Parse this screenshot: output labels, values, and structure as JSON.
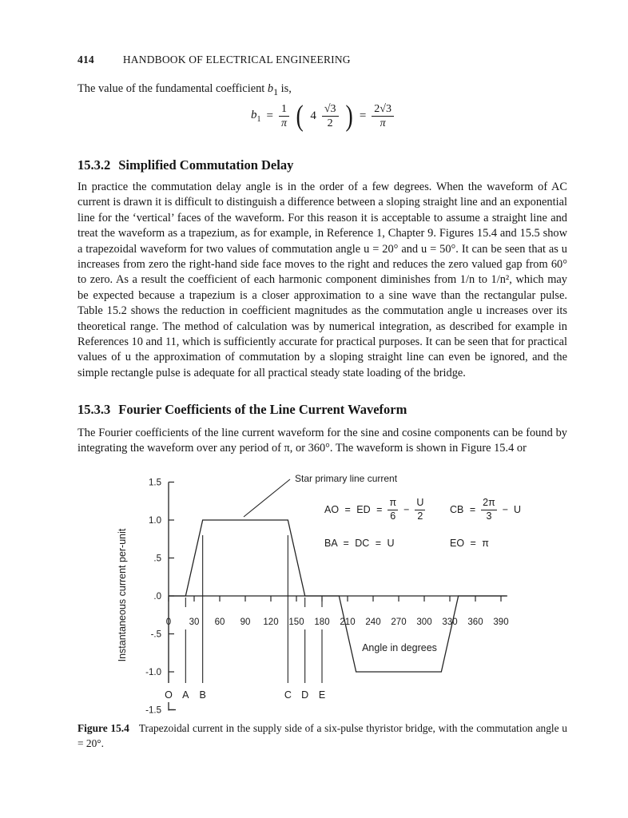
{
  "page": {
    "page_number": "414",
    "running_title": "HANDBOOK OF ELECTRICAL ENGINEERING"
  },
  "intro": {
    "pre": "The value of the fundamental coefficient ",
    "var": "b",
    "var_sub": "1",
    "post": " is,"
  },
  "equation": {
    "lhs_var": "b",
    "lhs_sub": "1",
    "equals1": "=",
    "frac1": {
      "num": "1",
      "den": "π"
    },
    "lparen": "(",
    "coef": "4",
    "frac2": {
      "num": "√3",
      "den": "2"
    },
    "rparen": ")",
    "equals2": "=",
    "frac3": {
      "num": "2√3",
      "den": "π"
    }
  },
  "section_1": {
    "number": "15.3.2",
    "title": "Simplified Commutation Delay",
    "body": "In practice the commutation delay angle is in the order of a few degrees. When the waveform of AC current is drawn it is difficult to distinguish a difference between a sloping straight line and an exponential line for the ‘vertical’ faces of the waveform. For this reason it is acceptable to assume a straight line and treat the waveform as a trapezium, as for example, in Reference 1, Chapter 9. Figures 15.4 and 15.5 show a trapezoidal waveform for two values of commutation angle u = 20° and u = 50°. It can be seen that as u increases from zero the right-hand side face moves to the right and reduces the zero valued gap from 60° to zero. As a result the coefficient of each harmonic component diminishes from 1/n to 1/n², which may be expected because a trapezium is a closer approximation to a sine wave than the rectangular pulse. Table 15.2 shows the reduction in coefficient magnitudes as the commutation angle u increases over its theoretical range. The method of calculation was by numerical integration, as described for example in References 10 and 11, which is sufficiently accurate for practical purposes. It can be seen that for practical values of u the approximation of commutation by a sloping straight line can even be ignored, and the simple rectangle pulse is adequate for all practical steady state loading of the bridge."
  },
  "section_2": {
    "number": "15.3.3",
    "title": "Fourier Coefficients of the Line Current Waveform",
    "body": "The Fourier coefficients of the line current waveform for the sine and cosine components can be found by integrating the waveform over any period of π, or 360°. The waveform is shown in Figure 15.4 or"
  },
  "figure": {
    "equations": {
      "ao_lhs": "AO = ED =",
      "ao_frac1": {
        "num": "π",
        "den": "6"
      },
      "ao_minus": "−",
      "ao_frac2": {
        "num": "U",
        "den": "2"
      },
      "cb_lhs": "CB =",
      "cb_frac": {
        "num": "2π",
        "den": "3"
      },
      "cb_minus": "−",
      "cb_rhs": "U",
      "ba": "BA = DC = U",
      "eo": "EO = π"
    },
    "caption_label": "Figure 15.4",
    "caption_text": "Trapezoidal current in the supply side of a six-pulse thyristor bridge, with the commutation angle u = 20°."
  },
  "chart_data": {
    "type": "line",
    "title": "",
    "xlabel": "Angle in degrees",
    "ylabel": "Instantaneous current per-unit",
    "xlim": [
      0,
      396
    ],
    "ylim": [
      -1.5,
      1.5
    ],
    "grid": false,
    "x_ticks": [
      0,
      30,
      60,
      90,
      120,
      150,
      180,
      210,
      240,
      270,
      300,
      330,
      360,
      390
    ],
    "x_tick_labels": [
      "0",
      "30",
      "60",
      "90",
      "120",
      "150",
      "180",
      "210",
      "240",
      "270",
      "300",
      "330",
      "360",
      "390"
    ],
    "y_ticks": [
      1.5,
      1.0,
      0.5,
      0,
      -0.5,
      -1.0,
      -1.5
    ],
    "y_tick_labels": [
      "1.5",
      "1.0",
      ".5",
      ".0",
      "-.5",
      "-1.0",
      "-1.5"
    ],
    "series": [
      {
        "name": "Star primary line current",
        "points": [
          [
            0,
            0
          ],
          [
            20,
            0
          ],
          [
            40,
            1
          ],
          [
            140,
            1
          ],
          [
            160,
            0
          ],
          [
            200,
            0
          ],
          [
            220,
            -1
          ],
          [
            320,
            -1
          ],
          [
            340,
            0
          ],
          [
            396,
            0
          ]
        ]
      }
    ],
    "markers": [
      {
        "label": "O",
        "x": 0,
        "style": "full"
      },
      {
        "label": "A",
        "x": 20,
        "style": "short"
      },
      {
        "label": "B",
        "x": 40,
        "style": "tall"
      },
      {
        "label": "C",
        "x": 140,
        "style": "tall"
      },
      {
        "label": "D",
        "x": 160,
        "style": "short"
      },
      {
        "label": "E",
        "x": 180,
        "style": "short"
      }
    ],
    "annotation": {
      "text": "Star primary line current",
      "points_to": "positive flat top of waveform"
    },
    "legend": "none"
  }
}
